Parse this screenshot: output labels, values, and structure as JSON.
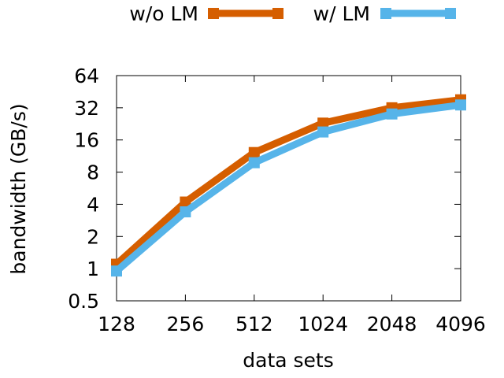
{
  "chart_data": {
    "type": "line",
    "title": "",
    "xlabel": "data sets",
    "ylabel": "bandwidth (GB/s)",
    "yscale": "log2",
    "ylim": [
      0.5,
      64
    ],
    "categories": [
      "128",
      "256",
      "512",
      "1024",
      "2048",
      "4096"
    ],
    "yticks": [
      "0.5",
      "1",
      "2",
      "4",
      "8",
      "16",
      "32",
      "64"
    ],
    "grid": false,
    "legend_position": "top",
    "series": [
      {
        "name": "w/o LM",
        "color": "#d55e00",
        "values": [
          1.1,
          4.2,
          12.2,
          23.0,
          32.0,
          38.0
        ]
      },
      {
        "name": "w/ LM",
        "color": "#56b4e9",
        "values": [
          0.95,
          3.4,
          9.8,
          19.0,
          28.0,
          34.0
        ]
      }
    ]
  }
}
